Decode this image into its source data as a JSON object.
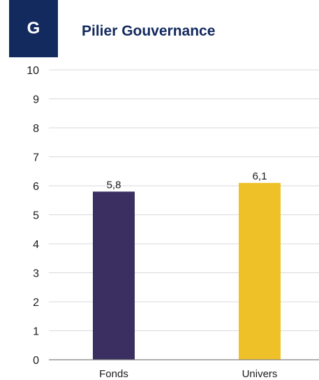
{
  "header": {
    "badge": "G",
    "title": "Pilier Gouvernance"
  },
  "colors": {
    "header": "#132a5e",
    "fonds": "#3a2f60",
    "univers": "#efc128",
    "grid": "#d9d9d9",
    "axis": "#808080",
    "text": "#1a1a1a"
  },
  "chart_data": {
    "type": "bar",
    "categories": [
      "Fonds",
      "Univers"
    ],
    "values": [
      5.8,
      6.1
    ],
    "value_labels": [
      "5,8",
      "6,1"
    ],
    "title": "",
    "xlabel": "",
    "ylabel": "",
    "ylim": [
      0,
      10
    ],
    "yticks": [
      0,
      1,
      2,
      3,
      4,
      5,
      6,
      7,
      8,
      9,
      10
    ],
    "grid": true,
    "legend": "none"
  }
}
